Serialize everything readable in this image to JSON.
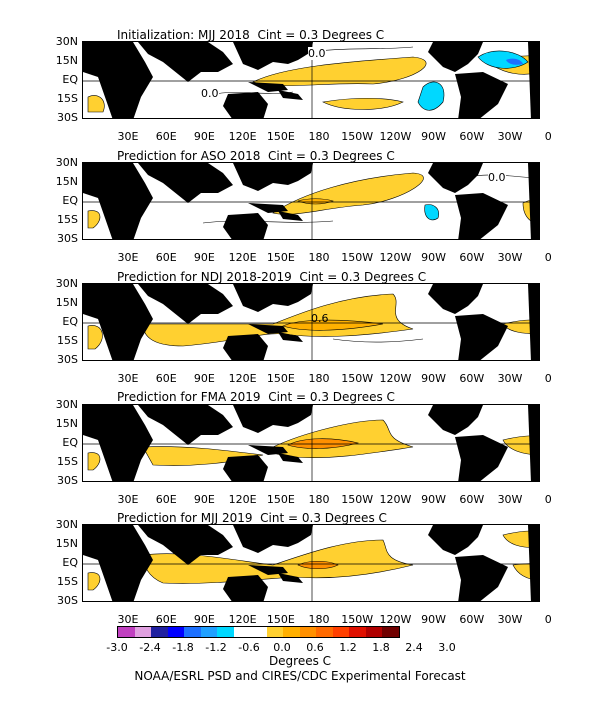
{
  "panels": [
    {
      "title": "Initialization: MJJ 2018  Cint = 0.3 Degrees C",
      "contour_labels": [
        "0.0",
        "0.0"
      ]
    },
    {
      "title": "Prediction for ASO 2018  Cint = 0.3 Degrees C",
      "contour_labels": [
        "0.0"
      ]
    },
    {
      "title": "Prediction for NDJ 2018-2019  Cint = 0.3 Degrees C",
      "contour_labels": [
        "0.6"
      ]
    },
    {
      "title": "Prediction for FMA 2019  Cint = 0.3 Degrees C",
      "contour_labels": []
    },
    {
      "title": "Prediction for MJJ 2019  Cint = 0.3 Degrees C",
      "contour_labels": []
    }
  ],
  "lat_labels": [
    "30N",
    "15N",
    "EQ",
    "15S",
    "30S"
  ],
  "lon_labels": [
    "30E",
    "60E",
    "90E",
    "120E",
    "150E",
    "180",
    "150W",
    "120W",
    "90W",
    "60W",
    "30W",
    "0"
  ],
  "colorbar": {
    "labels": [
      "-3.0",
      "-2.4",
      "-1.8",
      "-1.2",
      "-0.6",
      "0.0",
      "0.6",
      "1.2",
      "1.8",
      "2.4",
      "3.0"
    ],
    "colors": [
      "#c040c0",
      "#e0a0e0",
      "#2020a0",
      "#0000ff",
      "#1c70ff",
      "#20a0ff",
      "#00d8ff",
      "#ffffff",
      "#ffffff",
      "#ffd030",
      "#ffb000",
      "#ff9000",
      "#ff6a00",
      "#ff4000",
      "#e01000",
      "#b00000",
      "#700000"
    ],
    "units": "Degrees C"
  },
  "credit": "NOAA/ESRL PSD and CIRES/CDC Experimental Forecast"
}
